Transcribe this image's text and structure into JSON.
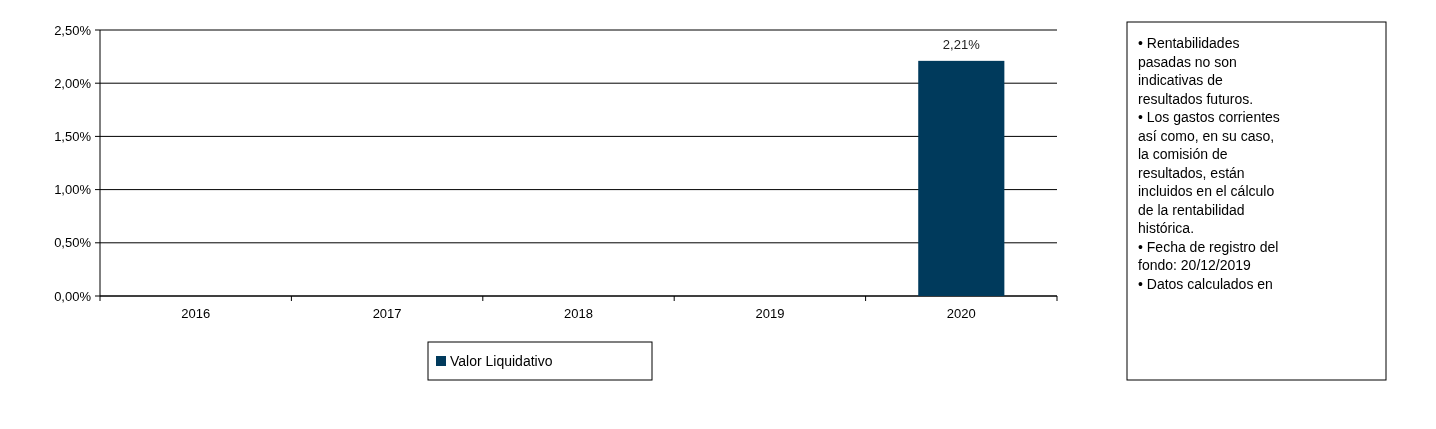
{
  "chart_data": {
    "type": "bar",
    "categories": [
      "2016",
      "2017",
      "2018",
      "2019",
      "2020"
    ],
    "series": [
      {
        "name": "Valor Liquidativo",
        "color": "#003a5c",
        "values": [
          null,
          null,
          null,
          null,
          2.21
        ],
        "value_labels": [
          null,
          null,
          null,
          null,
          "2,21%"
        ]
      }
    ],
    "ylim": [
      0,
      2.5
    ],
    "yticks": [
      {
        "value": 0,
        "label": "0,00%"
      },
      {
        "value": 0.5,
        "label": "0,50%"
      },
      {
        "value": 1,
        "label": "1,00%"
      },
      {
        "value": 1.5,
        "label": "1,50%"
      },
      {
        "value": 2,
        "label": "2,00%"
      },
      {
        "value": 2.5,
        "label": "2,50%"
      }
    ],
    "grid": "y",
    "legend": "bottom",
    "annotations": [
      "• Rentabilidades pasadas no son indicativas de resultados futuros.",
      "• Los gastos corrientes así como, en su caso, la comisión de resultados, están incluidos en el cálculo de la rentabilidad histórica.",
      "• Fecha de registro del fondo: 20/12/2019",
      "• Datos calculados en"
    ]
  }
}
